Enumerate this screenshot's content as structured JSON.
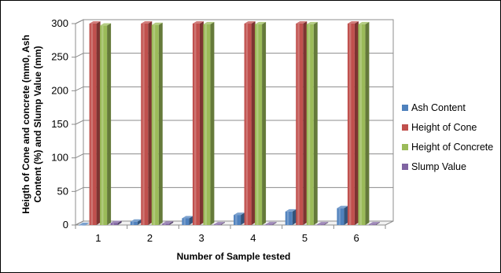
{
  "chart_data": {
    "type": "bar",
    "categories": [
      "1",
      "2",
      "3",
      "4",
      "5",
      "6"
    ],
    "series": [
      {
        "name": "Ash Content",
        "values": [
          0,
          5,
          10,
          15,
          20,
          25
        ],
        "color": "#4f81bd"
      },
      {
        "name": "Height of Cone",
        "values": [
          300,
          300,
          300,
          300,
          300,
          300
        ],
        "color": "#c0504d"
      },
      {
        "name": "Height of Concrete",
        "values": [
          297,
          298,
          299,
          299,
          299,
          299
        ],
        "color": "#9bbb59"
      },
      {
        "name": "Slump Value",
        "values": [
          3,
          2,
          1,
          1,
          1,
          1
        ],
        "color": "#8064a2"
      }
    ],
    "xlabel": "Number of Sample tested",
    "ylabel": "Heigth of Cone and concrete (mm0, Ash Content (%) and Slump Value (mm)",
    "ylabel_lines": [
      "Heigth of Cone and concrete (mm0, Ash",
      "Content (%) and Slump Value (mm)"
    ],
    "ylim": [
      0,
      300
    ],
    "yticks": [
      "0",
      "50",
      "100",
      "150",
      "200",
      "250",
      "300"
    ],
    "grid": true,
    "legend": "right",
    "three_d": true
  }
}
